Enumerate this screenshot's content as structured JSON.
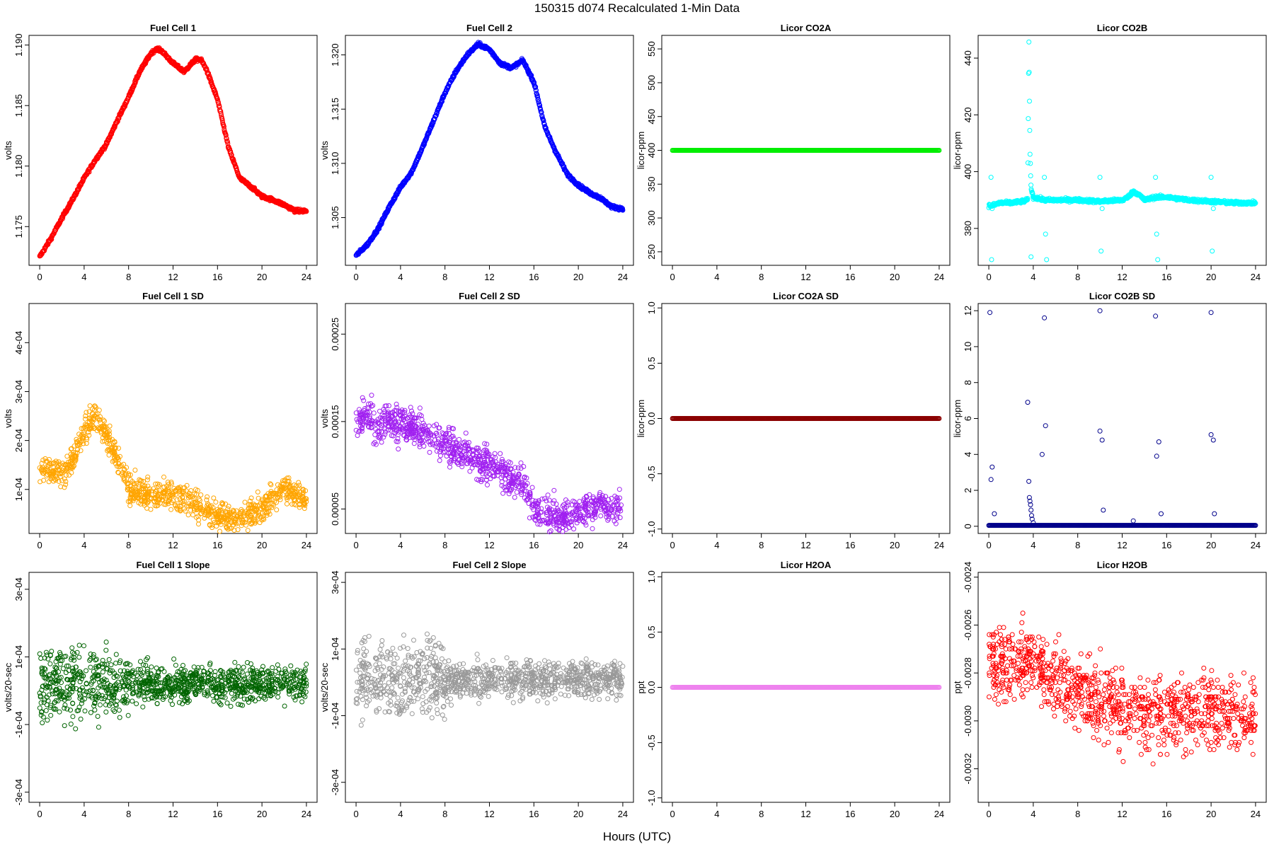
{
  "figure": {
    "title": "150315   d074   Recalculated 1-Min Data",
    "xlabel": "Hours (UTC)"
  },
  "chart_data": [
    {
      "id": "fc1",
      "type": "scatter",
      "title": "Fuel Cell 1",
      "ylabel": "volts",
      "color": "#ff0000",
      "xlim": [
        0,
        24
      ],
      "ylim": [
        1.1718,
        1.1908
      ],
      "yticks": [
        1.175,
        1.18,
        1.185,
        1.19
      ],
      "yticklabels": [
        "1.175",
        "1.180",
        "1.185",
        "1.190"
      ],
      "x": [
        0,
        1,
        2,
        3,
        4,
        5,
        6,
        7,
        8,
        9,
        10,
        10.5,
        11,
        12,
        13,
        14,
        14.5,
        15,
        16,
        17,
        18,
        19,
        20,
        21,
        22,
        23,
        24
      ],
      "y": [
        1.1725,
        1.174,
        1.1757,
        1.1773,
        1.179,
        1.1805,
        1.1818,
        1.1838,
        1.1857,
        1.1878,
        1.1893,
        1.1897,
        1.1895,
        1.1885,
        1.1878,
        1.1888,
        1.1888,
        1.188,
        1.1855,
        1.1815,
        1.179,
        1.1783,
        1.1775,
        1.1772,
        1.1768,
        1.1763,
        1.1763
      ],
      "style": "dense"
    },
    {
      "id": "fc2",
      "type": "scatter",
      "title": "Fuel Cell 2",
      "ylabel": "volts",
      "color": "#0000ff",
      "xlim": [
        0,
        24
      ],
      "ylim": [
        1.3006,
        1.3218
      ],
      "yticks": [
        1.305,
        1.31,
        1.315,
        1.32
      ],
      "yticklabels": [
        "1.305",
        "1.310",
        "1.315",
        "1.320"
      ],
      "x": [
        0,
        1,
        2,
        3,
        4,
        5,
        6,
        7,
        8,
        9,
        10,
        11,
        12,
        13,
        14,
        15,
        16,
        17,
        18,
        19,
        20,
        21,
        22,
        23,
        24
      ],
      "y": [
        1.3015,
        1.3025,
        1.304,
        1.306,
        1.3078,
        1.3092,
        1.3115,
        1.314,
        1.3165,
        1.3185,
        1.32,
        1.321,
        1.3205,
        1.3192,
        1.3188,
        1.3195,
        1.3175,
        1.3133,
        1.311,
        1.309,
        1.308,
        1.3073,
        1.3068,
        1.306,
        1.3058
      ],
      "style": "dense"
    },
    {
      "id": "co2a",
      "type": "scatter",
      "title": "Licor CO2A",
      "ylabel": "licor-ppm",
      "color": "#00ee00",
      "xlim": [
        0,
        24
      ],
      "ylim": [
        230,
        570
      ],
      "yticks": [
        250,
        300,
        350,
        400,
        450,
        500,
        550
      ],
      "yticklabels": [
        "250",
        "300",
        "350",
        "400",
        "450",
        "500",
        "550"
      ],
      "x": [
        0,
        24
      ],
      "y": [
        400,
        400
      ],
      "style": "flat"
    },
    {
      "id": "co2b",
      "type": "scatter",
      "title": "Licor CO2B",
      "ylabel": "licor-ppm",
      "color": "#00ffff",
      "xlim": [
        0,
        24
      ],
      "ylim": [
        367,
        448
      ],
      "yticks": [
        380,
        400,
        420,
        440
      ],
      "yticklabels": [
        "380",
        "400",
        "420",
        "440"
      ],
      "x": [
        0,
        0.3,
        1,
        2,
        3,
        3.5,
        3.6,
        3.7,
        3.8,
        4,
        5,
        6,
        8,
        10,
        12,
        12.5,
        13,
        13.5,
        14,
        15,
        16,
        18,
        20,
        22,
        24
      ],
      "y": [
        388,
        388,
        389,
        389,
        389.5,
        390,
        447,
        408,
        394,
        391,
        390,
        390,
        390,
        389.5,
        390,
        391,
        393,
        392,
        390,
        391,
        391,
        390,
        389.5,
        389,
        389
      ],
      "outliers": [
        [
          0.2,
          398
        ],
        [
          0.25,
          369
        ],
        [
          0.3,
          387
        ],
        [
          3.8,
          370
        ],
        [
          5,
          398
        ],
        [
          5.1,
          378
        ],
        [
          5.2,
          369
        ],
        [
          10,
          398
        ],
        [
          10.1,
          372
        ],
        [
          10.2,
          387
        ],
        [
          15,
          398
        ],
        [
          15.1,
          378
        ],
        [
          15.2,
          369
        ],
        [
          20,
          398
        ],
        [
          20.1,
          372
        ],
        [
          20.2,
          387
        ]
      ],
      "style": "dense"
    },
    {
      "id": "fc1sd",
      "type": "scatter",
      "title": "Fuel Cell 1 SD",
      "ylabel": "volts",
      "color": "#ffa500",
      "xlim": [
        0,
        24
      ],
      "ylim": [
        1e-05,
        0.00048
      ],
      "yticks": [
        0.0001,
        0.0002,
        0.0003,
        0.0004
      ],
      "yticklabels": [
        "1e-04",
        "2e-04",
        "3e-04",
        "4e-04"
      ],
      "x": [
        0,
        1,
        2,
        3,
        4,
        5,
        6,
        7,
        8,
        9,
        10,
        11,
        12,
        13,
        14,
        15,
        16,
        17,
        18,
        19,
        20,
        21,
        22,
        23,
        24
      ],
      "y": [
        0.000145,
        0.00014,
        0.00013,
        0.00016,
        0.00022,
        0.00025,
        0.00021,
        0.00016,
        0.0001,
        9.5e-05,
        9e-05,
        9e-05,
        9e-05,
        8e-05,
        7e-05,
        6e-05,
        4.5e-05,
        4e-05,
        4e-05,
        5e-05,
        6e-05,
        8.5e-05,
        0.000105,
        9e-05,
        8e-05
      ],
      "spread": 4e-05,
      "style": "scatter"
    },
    {
      "id": "fc2sd",
      "type": "scatter",
      "title": "Fuel Cell 2 SD",
      "ylabel": "volts",
      "color": "#a020f0",
      "xlim": [
        0,
        24
      ],
      "ylim": [
        2.2e-05,
        0.000285
      ],
      "yticks": [
        5e-05,
        0.00015,
        0.00025
      ],
      "yticklabels": [
        "0.00005",
        "0.00015",
        "0.00025"
      ],
      "x": [
        0,
        1,
        2,
        3,
        4,
        5,
        6,
        7,
        8,
        9,
        10,
        11,
        12,
        13,
        14,
        15,
        16,
        17,
        18,
        19,
        20,
        21,
        22,
        23,
        24
      ],
      "y": [
        0.00015,
        0.000155,
        0.000145,
        0.00015,
        0.000145,
        0.000145,
        0.00014,
        0.00013,
        0.000125,
        0.00012,
        0.000115,
        0.000105,
        0.0001,
        9.5e-05,
        8.5e-05,
        8e-05,
        5e-05,
        4.5e-05,
        4e-05,
        4e-05,
        4.5e-05,
        5e-05,
        5.5e-05,
        5e-05,
        5e-05
      ],
      "spread": 2.8e-05,
      "style": "scatter"
    },
    {
      "id": "co2asd",
      "type": "scatter",
      "title": "Licor CO2A SD",
      "ylabel": "licor-ppm",
      "color": "#8b0000",
      "xlim": [
        0,
        24
      ],
      "ylim": [
        -1.04,
        1.04
      ],
      "yticks": [
        -1,
        -0.5,
        0,
        0.5,
        1
      ],
      "yticklabels": [
        "-1.0",
        "-0.5",
        "0.0",
        "0.5",
        "1.0"
      ],
      "x": [
        0,
        24
      ],
      "y": [
        0,
        0
      ],
      "style": "flat"
    },
    {
      "id": "co2bsd",
      "type": "scatter",
      "title": "Licor CO2B SD",
      "ylabel": "licor-ppm",
      "color": "#00008b",
      "xlim": [
        0,
        24
      ],
      "ylim": [
        -0.4,
        12.4
      ],
      "yticks": [
        0,
        2,
        4,
        6,
        8,
        10,
        12
      ],
      "yticklabels": [
        "0",
        "2",
        "4",
        "6",
        "8",
        "10",
        "12"
      ],
      "x": [
        0,
        24
      ],
      "y": [
        0.05,
        0.05
      ],
      "outliers": [
        [
          0.1,
          11.9
        ],
        [
          0.2,
          2.6
        ],
        [
          0.3,
          3.3
        ],
        [
          0.5,
          0.7
        ],
        [
          3.5,
          6.9
        ],
        [
          3.6,
          2.5
        ],
        [
          3.65,
          1.6
        ],
        [
          3.7,
          1.4
        ],
        [
          3.75,
          1.2
        ],
        [
          3.8,
          0.9
        ],
        [
          3.85,
          0.6
        ],
        [
          3.9,
          0.4
        ],
        [
          4,
          0.2
        ],
        [
          4.8,
          4
        ],
        [
          5,
          11.6
        ],
        [
          5.1,
          5.6
        ],
        [
          10,
          12
        ],
        [
          10,
          5.3
        ],
        [
          10.2,
          4.8
        ],
        [
          10.3,
          0.9
        ],
        [
          13,
          0.3
        ],
        [
          15,
          11.7
        ],
        [
          15.1,
          3.9
        ],
        [
          15.3,
          4.7
        ],
        [
          15.5,
          0.7
        ],
        [
          20,
          11.9
        ],
        [
          20,
          5.1
        ],
        [
          20.2,
          4.8
        ],
        [
          20.3,
          0.7
        ]
      ],
      "style": "flat"
    },
    {
      "id": "fc1slope",
      "type": "scatter",
      "title": "Fuel Cell 1 Slope",
      "ylabel": "volts/20-sec",
      "color": "#006400",
      "xlim": [
        0,
        24
      ],
      "ylim": [
        -0.00033,
        0.00035
      ],
      "yticks": [
        -0.0003,
        -0.0001,
        0.0001,
        0.0003
      ],
      "yticklabels": [
        "-3e-04",
        "-1e-04",
        "1e-04",
        "3e-04"
      ],
      "x": [
        0,
        24
      ],
      "y": [
        2e-05,
        2e-05
      ],
      "spread": 0.00013,
      "spread_late": 7e-05,
      "style": "noise"
    },
    {
      "id": "fc2slope",
      "type": "scatter",
      "title": "Fuel Cell 2 Slope",
      "ylabel": "volts/20-sec",
      "color": "#999999",
      "xlim": [
        0,
        24
      ],
      "ylim": [
        -0.00036,
        0.00033
      ],
      "yticks": [
        -0.0003,
        -0.0001,
        0.0001,
        0.0003
      ],
      "yticklabels": [
        "-3e-04",
        "-1e-04",
        "1e-04",
        "3e-04"
      ],
      "x": [
        0,
        24
      ],
      "y": [
        1e-05,
        1e-05
      ],
      "spread": 0.00015,
      "spread_late": 7e-05,
      "style": "noise"
    },
    {
      "id": "h2oa",
      "type": "scatter",
      "title": "Licor H2OA",
      "ylabel": "ppt",
      "color": "#ee82ee",
      "xlim": [
        0,
        24
      ],
      "ylim": [
        -1.04,
        1.04
      ],
      "yticks": [
        -1,
        -0.5,
        0,
        0.5,
        1
      ],
      "yticklabels": [
        "-1.0",
        "-0.5",
        "0.0",
        "0.5",
        "1.0"
      ],
      "x": [
        0,
        24
      ],
      "y": [
        0,
        0
      ],
      "style": "flat"
    },
    {
      "id": "h2ob",
      "type": "scatter",
      "title": "Licor H2OB",
      "ylabel": "ppt",
      "color": "#ff0000",
      "xlim": [
        0,
        24
      ],
      "ylim": [
        -0.00334,
        -0.00238
      ],
      "yticks": [
        -0.0032,
        -0.003,
        -0.0028,
        -0.0026,
        -0.0024
      ],
      "yticklabels": [
        "-0.0032",
        "-0.0030",
        "-0.0028",
        "-0.0026",
        "-0.0024"
      ],
      "x": [
        0,
        4,
        8,
        12,
        16,
        20,
        24
      ],
      "y": [
        -0.00278,
        -0.00275,
        -0.00286,
        -0.00296,
        -0.00297,
        -0.00297,
        -0.00298
      ],
      "spread": 0.00022,
      "quantize": 1e-05,
      "style": "scatter"
    }
  ],
  "xticks": [
    0,
    4,
    8,
    12,
    16,
    20,
    24
  ],
  "xticklabels": [
    "0",
    "4",
    "8",
    "12",
    "16",
    "20",
    "24"
  ]
}
